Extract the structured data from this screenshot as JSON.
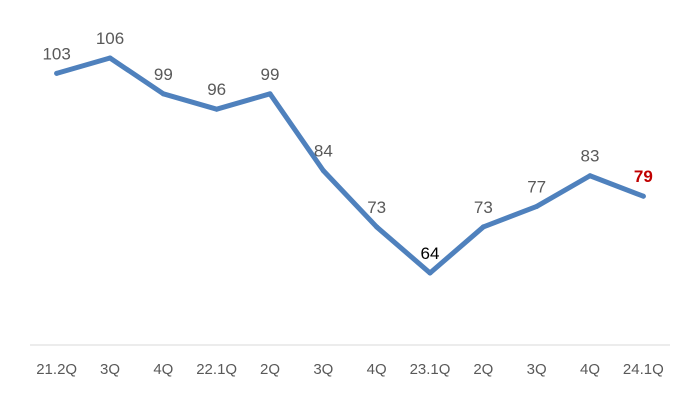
{
  "chart_data": {
    "type": "line",
    "categories": [
      "21.2Q",
      "3Q",
      "4Q",
      "22.1Q",
      "2Q",
      "3Q",
      "4Q",
      "23.1Q",
      "2Q",
      "3Q",
      "4Q",
      "24.1Q"
    ],
    "series": [
      {
        "values": [
          103,
          106,
          99,
          96,
          99,
          84,
          73,
          64,
          73,
          77,
          83,
          79
        ],
        "color": "#4F81BD"
      }
    ],
    "data_labels": [
      "103",
      "106",
      "99",
      "96",
      "99",
      "84",
      "73",
      "64",
      "73",
      "77",
      "83",
      "79"
    ],
    "highlight": {
      "index": 11,
      "color": "#C00000",
      "bold": true
    },
    "secondary_highlight": {
      "index": 7,
      "color": "#000000"
    },
    "title": "",
    "xlabel": "",
    "ylabel": "",
    "ylim": [
      40,
      120
    ],
    "grid": false,
    "legend": "none",
    "y_axis_visible": false
  }
}
